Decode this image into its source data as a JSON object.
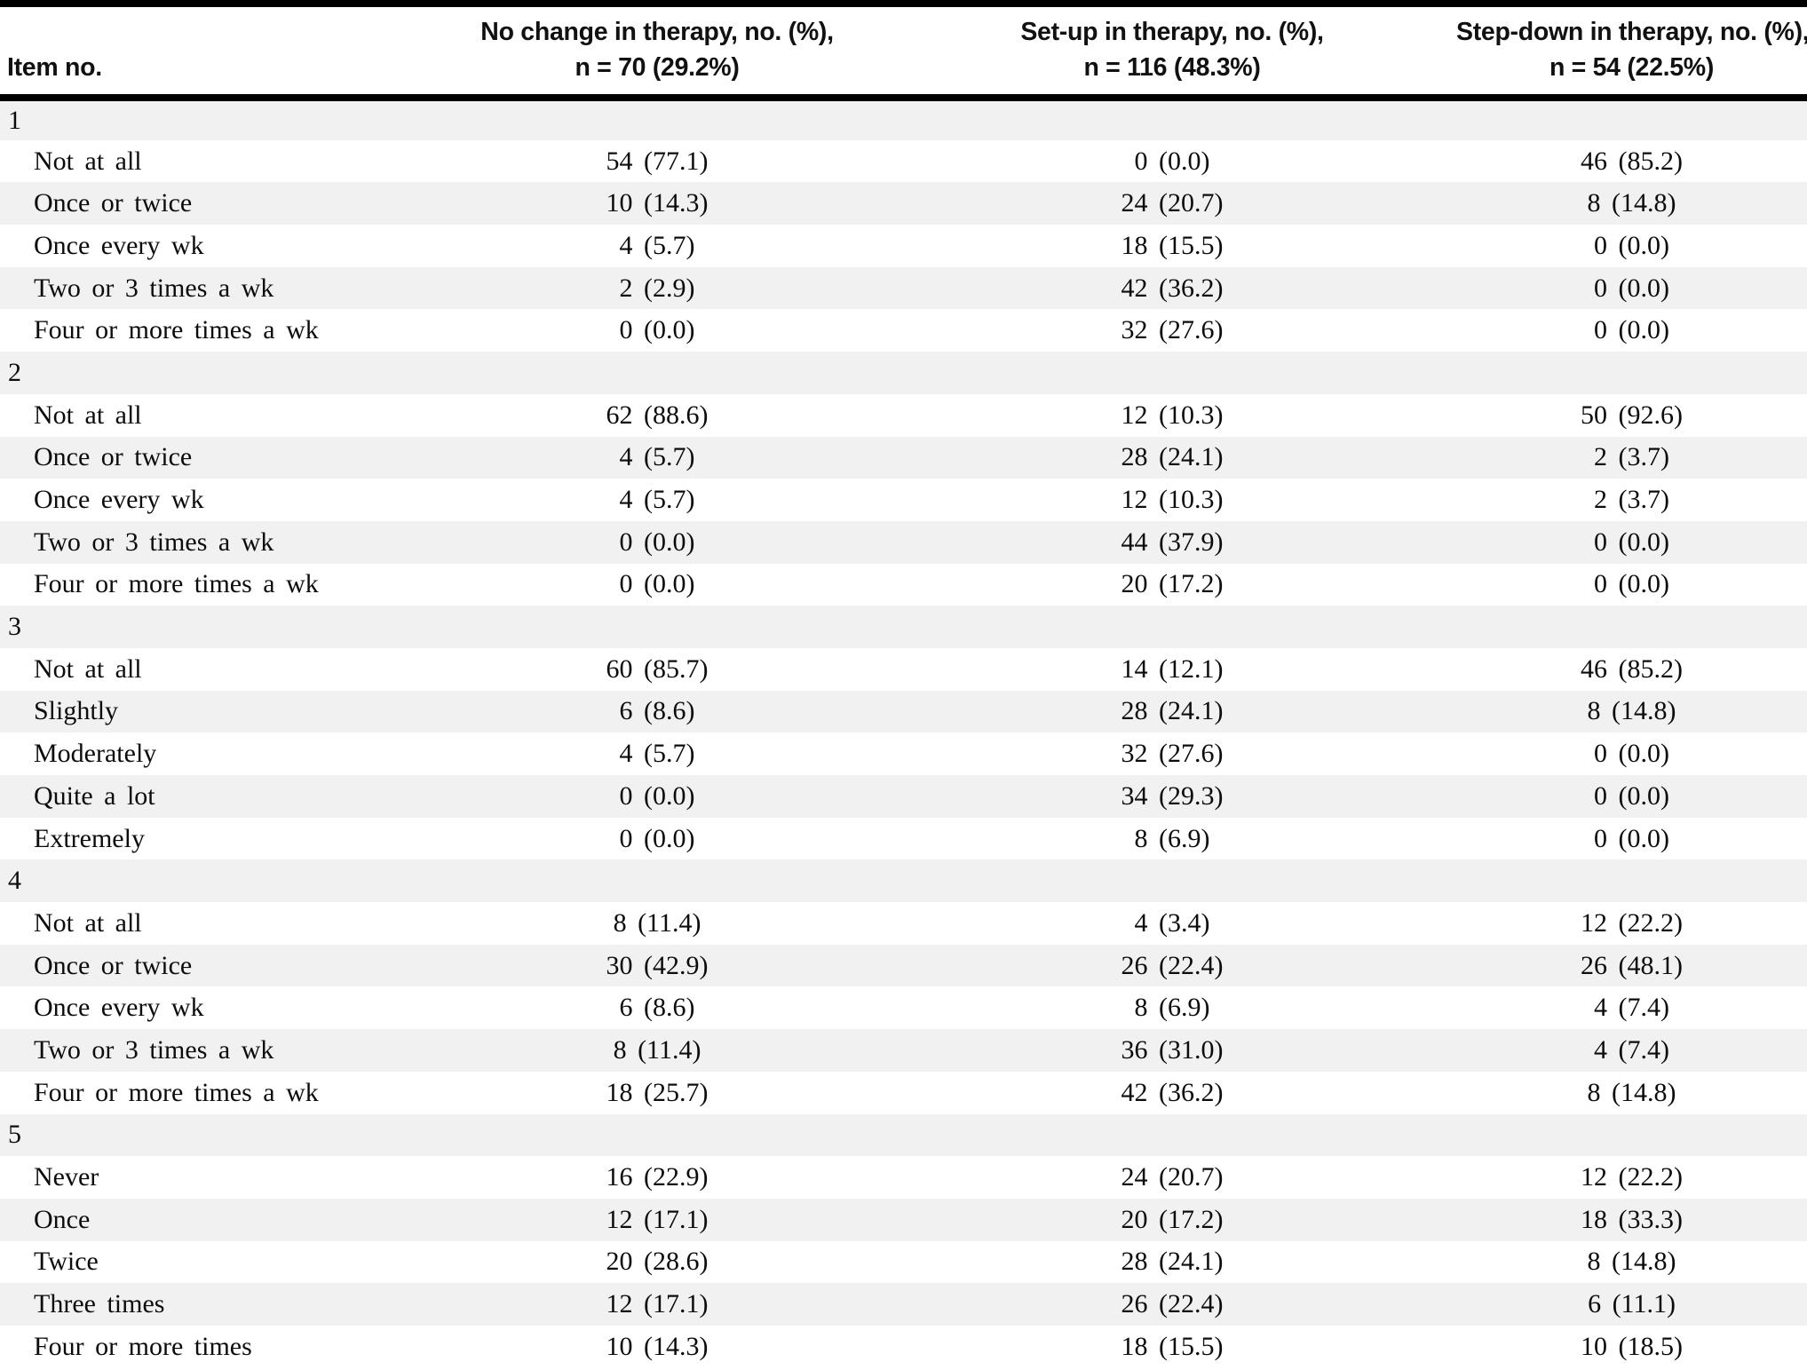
{
  "table": {
    "colors": {
      "stripe_bg": "#f1f1f1",
      "rule": "#000000"
    },
    "header": {
      "item_col": "Item no.",
      "cols": [
        {
          "line1": "No change in therapy, no. (%),",
          "line2": "n = 70 (29.2%)"
        },
        {
          "line1": "Set-up in therapy, no. (%),",
          "line2": "n = 116 (48.3%)"
        },
        {
          "line1": "Step-down in therapy, no. (%),",
          "line2": "n = 54 (22.5%)"
        }
      ]
    },
    "sections": [
      {
        "item": "1",
        "rows": [
          {
            "label": "Not at all",
            "values": [
              "54 (77.1)",
              "0 (0.0)",
              "46 (85.2)"
            ]
          },
          {
            "label": "Once or twice",
            "values": [
              "10 (14.3)",
              "24 (20.7)",
              "8 (14.8)"
            ]
          },
          {
            "label": "Once every wk",
            "values": [
              "4 (5.7)",
              "18 (15.5)",
              "0 (0.0)"
            ]
          },
          {
            "label": "Two or 3 times a wk",
            "values": [
              "2 (2.9)",
              "42 (36.2)",
              "0 (0.0)"
            ]
          },
          {
            "label": "Four or more times a wk",
            "values": [
              "0 (0.0)",
              "32 (27.6)",
              "0 (0.0)"
            ]
          }
        ]
      },
      {
        "item": "2",
        "rows": [
          {
            "label": "Not at all",
            "values": [
              "62 (88.6)",
              "12 (10.3)",
              "50 (92.6)"
            ]
          },
          {
            "label": "Once or twice",
            "values": [
              "4 (5.7)",
              "28 (24.1)",
              "2 (3.7)"
            ]
          },
          {
            "label": "Once every wk",
            "values": [
              "4 (5.7)",
              "12 (10.3)",
              "2 (3.7)"
            ]
          },
          {
            "label": "Two or 3 times a wk",
            "values": [
              "0 (0.0)",
              "44 (37.9)",
              "0 (0.0)"
            ]
          },
          {
            "label": "Four or more times a wk",
            "values": [
              "0 (0.0)",
              "20 (17.2)",
              "0 (0.0)"
            ]
          }
        ]
      },
      {
        "item": "3",
        "rows": [
          {
            "label": "Not at all",
            "values": [
              "60 (85.7)",
              "14 (12.1)",
              "46 (85.2)"
            ]
          },
          {
            "label": "Slightly",
            "values": [
              "6 (8.6)",
              "28 (24.1)",
              "8 (14.8)"
            ]
          },
          {
            "label": "Moderately",
            "values": [
              "4 (5.7)",
              "32 (27.6)",
              "0 (0.0)"
            ]
          },
          {
            "label": "Quite a lot",
            "values": [
              "0 (0.0)",
              "34 (29.3)",
              "0 (0.0)"
            ]
          },
          {
            "label": "Extremely",
            "values": [
              "0 (0.0)",
              "8 (6.9)",
              "0 (0.0)"
            ]
          }
        ]
      },
      {
        "item": "4",
        "rows": [
          {
            "label": "Not at all",
            "values": [
              "8 (11.4)",
              "4 (3.4)",
              "12 (22.2)"
            ]
          },
          {
            "label": "Once or twice",
            "values": [
              "30 (42.9)",
              "26 (22.4)",
              "26 (48.1)"
            ]
          },
          {
            "label": "Once every wk",
            "values": [
              "6 (8.6)",
              "8 (6.9)",
              "4 (7.4)"
            ]
          },
          {
            "label": "Two or 3 times a wk",
            "values": [
              "8 (11.4)",
              "36 (31.0)",
              "4 (7.4)"
            ]
          },
          {
            "label": "Four or more times a wk",
            "values": [
              "18 (25.7)",
              "42 (36.2)",
              "8 (14.8)"
            ]
          }
        ]
      },
      {
        "item": "5",
        "rows": [
          {
            "label": "Never",
            "values": [
              "16 (22.9)",
              "24 (20.7)",
              "12 (22.2)"
            ]
          },
          {
            "label": "Once",
            "values": [
              "12 (17.1)",
              "20 (17.2)",
              "18 (33.3)"
            ]
          },
          {
            "label": "Twice",
            "values": [
              "20 (28.6)",
              "28 (24.1)",
              "8 (14.8)"
            ]
          },
          {
            "label": "Three times",
            "values": [
              "12 (17.1)",
              "26 (22.4)",
              "6 (11.1)"
            ]
          },
          {
            "label": "Four or more times",
            "values": [
              "10 (14.3)",
              "18 (15.5)",
              "10 (18.5)"
            ]
          }
        ]
      }
    ]
  }
}
